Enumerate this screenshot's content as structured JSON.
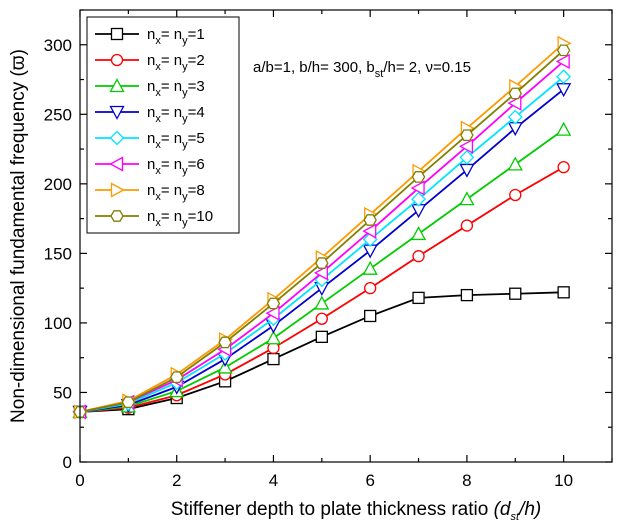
{
  "chart_data": {
    "type": "line",
    "xlabel": "Stiffener depth to plate thickness ratio (d_st/h)",
    "xlabel_main": "Stiffener depth to plate thickness ratio ",
    "xlabel_var": "(d",
    "xlabel_sub": "st",
    "xlabel_end": "/h)",
    "ylabel": "Non-dimensional fundamental frequency (ϖ)",
    "xlim": [
      0,
      11
    ],
    "ylim": [
      0,
      325
    ],
    "x_ticks": [
      0,
      2,
      4,
      6,
      8,
      10
    ],
    "y_ticks": [
      0,
      50,
      100,
      150,
      200,
      250,
      300
    ],
    "x_tick_labels": [
      "0",
      "2",
      "4",
      "6",
      "8",
      "10"
    ],
    "y_tick_labels": [
      "0",
      "50",
      "100",
      "150",
      "200",
      "250",
      "300"
    ],
    "annotation": {
      "part1": "a/b=1, b/h= 300, b",
      "sub": "st",
      "part2": "/h= 2, ν=0.15"
    },
    "legend_position": "top-left",
    "grid": false,
    "x": [
      0,
      1,
      2,
      3,
      4,
      5,
      6,
      7,
      8,
      9,
      10
    ],
    "series": [
      {
        "name": "nx= ny=1",
        "n": "1",
        "color": "#000000",
        "marker": "square",
        "values": [
          36,
          38,
          46,
          58,
          74,
          90,
          105,
          118,
          120,
          121,
          122
        ]
      },
      {
        "name": "nx= ny=2",
        "n": "2",
        "color": "#ff0000",
        "marker": "circle",
        "values": [
          36,
          39,
          48,
          63,
          82,
          103,
          125,
          148,
          170,
          192,
          212
        ]
      },
      {
        "name": "nx= ny=3",
        "n": "3",
        "color": "#00cc00",
        "marker": "triangle-up",
        "values": [
          36,
          40,
          51,
          68,
          89,
          114,
          139,
          164,
          189,
          214,
          239
        ]
      },
      {
        "name": "nx= ny=4",
        "n": "4",
        "color": "#0000cc",
        "marker": "triangle-down",
        "values": [
          36,
          41,
          54,
          74,
          98,
          125,
          152,
          181,
          210,
          240,
          268
        ]
      },
      {
        "name": "nx= ny=5",
        "n": "5",
        "color": "#00e5ff",
        "marker": "diamond",
        "values": [
          36,
          42,
          57,
          78,
          103,
          131,
          160,
          189,
          219,
          248,
          277
        ]
      },
      {
        "name": "nx= ny=6",
        "n": "6",
        "color": "#ff00ff",
        "marker": "triangle-left",
        "values": [
          36,
          43,
          59,
          81,
          107,
          136,
          166,
          197,
          227,
          258,
          288
        ]
      },
      {
        "name": "nx= ny=8",
        "n": "8",
        "color": "#ff9900",
        "marker": "triangle-right",
        "values": [
          36,
          44,
          63,
          88,
          117,
          147,
          178,
          209,
          240,
          270,
          301
        ]
      },
      {
        "name": "nx= ny=10",
        "n": "10",
        "color": "#808000",
        "marker": "hexagon",
        "values": [
          36,
          43,
          61,
          86,
          114,
          143,
          174,
          205,
          235,
          265,
          296
        ]
      }
    ]
  }
}
